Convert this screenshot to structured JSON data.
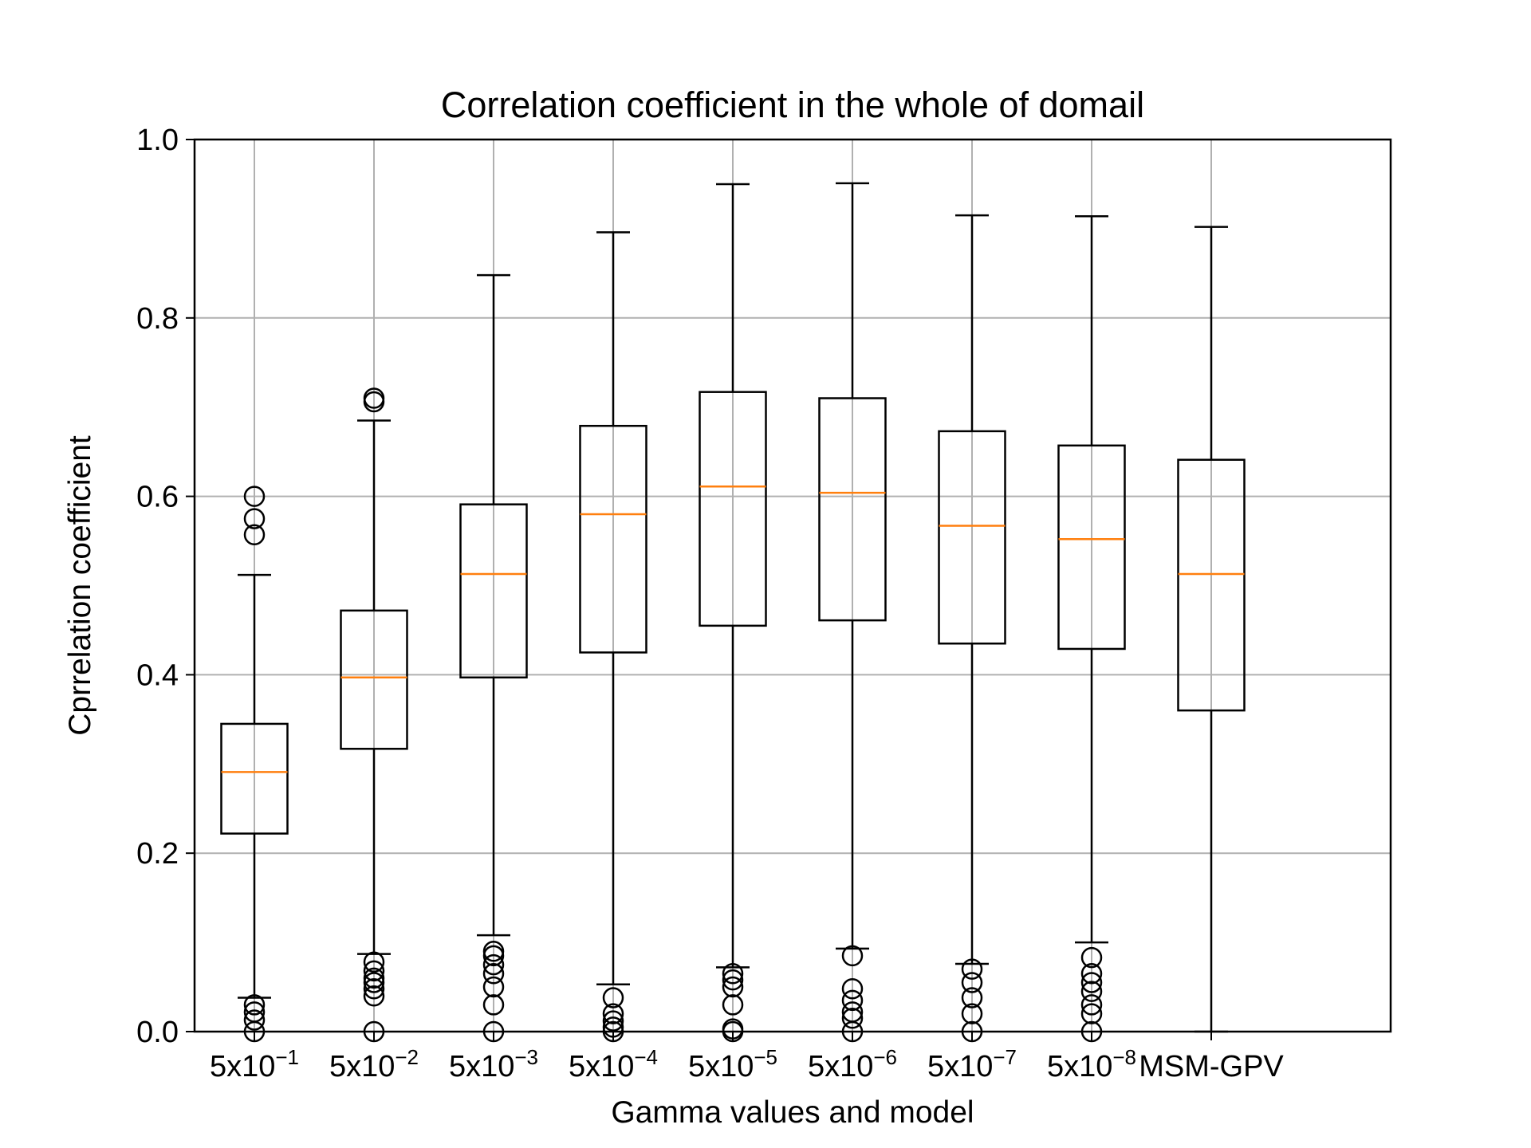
{
  "chart_data": {
    "type": "box",
    "title": "Correlation coefficient in the whole of domail",
    "xlabel": "Gamma values and model",
    "ylabel": "Cprrelation coefficient",
    "ylim": [
      0.0,
      1.0
    ],
    "yticks": [
      0.0,
      0.2,
      0.4,
      0.6,
      0.8,
      1.0
    ],
    "ytick_labels": [
      "0.0",
      "0.2",
      "0.4",
      "0.6",
      "0.8",
      "1.0"
    ],
    "grid": true,
    "colors": {
      "box": "#000000",
      "median": "#ff7f0e",
      "grid": "#b0b0b0",
      "outlier": "#000000"
    },
    "categories": [
      {
        "base": "5x10",
        "exp": "−1"
      },
      {
        "base": "5x10",
        "exp": "−2"
      },
      {
        "base": "5x10",
        "exp": "−3"
      },
      {
        "base": "5x10",
        "exp": "−4"
      },
      {
        "base": "5x10",
        "exp": "−5"
      },
      {
        "base": "5x10",
        "exp": "−6"
      },
      {
        "base": "5x10",
        "exp": "−7"
      },
      {
        "base": "5x10",
        "exp": "−8"
      },
      {
        "base": "MSM-GPV",
        "exp": ""
      }
    ],
    "boxes": [
      {
        "whisker_low": 0.038,
        "q1": 0.222,
        "median": 0.291,
        "q3": 0.345,
        "whisker_high": 0.512,
        "outliers": [
          0.0,
          0.013,
          0.022,
          0.03,
          0.557,
          0.575,
          0.6
        ]
      },
      {
        "whisker_low": 0.087,
        "q1": 0.317,
        "median": 0.397,
        "q3": 0.472,
        "whisker_high": 0.685,
        "outliers": [
          0.0,
          0.04,
          0.048,
          0.055,
          0.06,
          0.068,
          0.078,
          0.706,
          0.71
        ]
      },
      {
        "whisker_low": 0.108,
        "q1": 0.397,
        "median": 0.513,
        "q3": 0.591,
        "whisker_high": 0.848,
        "outliers": [
          0.0,
          0.03,
          0.05,
          0.065,
          0.075,
          0.085,
          0.09
        ]
      },
      {
        "whisker_low": 0.053,
        "q1": 0.425,
        "median": 0.58,
        "q3": 0.679,
        "whisker_high": 0.896,
        "outliers": [
          0.0,
          0.005,
          0.012,
          0.02,
          0.038
        ]
      },
      {
        "whisker_low": 0.072,
        "q1": 0.455,
        "median": 0.611,
        "q3": 0.717,
        "whisker_high": 0.95,
        "outliers": [
          0.0,
          0.003,
          0.03,
          0.05,
          0.058,
          0.065
        ]
      },
      {
        "whisker_low": 0.093,
        "q1": 0.461,
        "median": 0.604,
        "q3": 0.71,
        "whisker_high": 0.951,
        "outliers": [
          0.0,
          0.015,
          0.022,
          0.035,
          0.048,
          0.085
        ]
      },
      {
        "whisker_low": 0.076,
        "q1": 0.435,
        "median": 0.567,
        "q3": 0.673,
        "whisker_high": 0.915,
        "outliers": [
          0.0,
          0.02,
          0.038,
          0.055,
          0.07
        ]
      },
      {
        "whisker_low": 0.1,
        "q1": 0.429,
        "median": 0.552,
        "q3": 0.657,
        "whisker_high": 0.914,
        "outliers": [
          0.0,
          0.02,
          0.03,
          0.045,
          0.055,
          0.065,
          0.083
        ]
      },
      {
        "whisker_low": 0.0,
        "q1": 0.36,
        "median": 0.513,
        "q3": 0.641,
        "whisker_high": 0.902,
        "outliers": []
      }
    ]
  }
}
